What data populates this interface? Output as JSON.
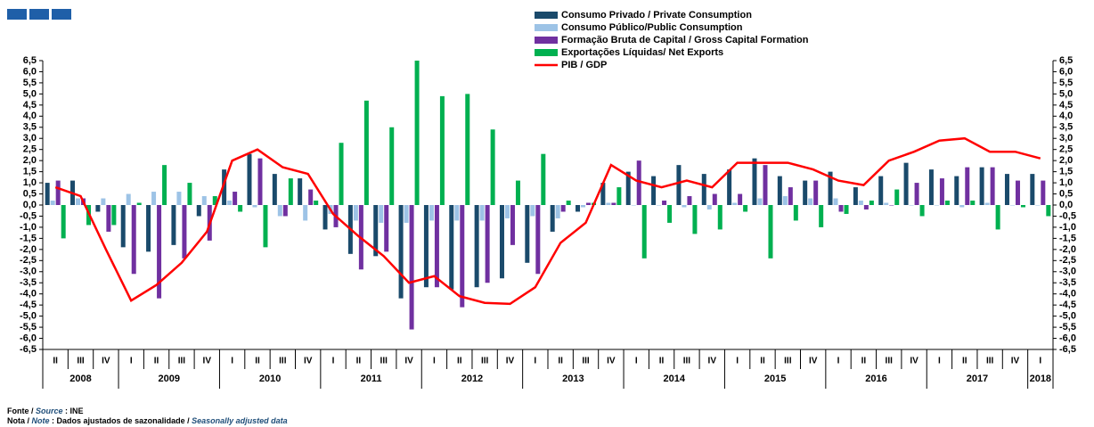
{
  "chart_data": {
    "type": "bar",
    "categories": [
      "II",
      "III",
      "IV",
      "I",
      "II",
      "III",
      "IV",
      "I",
      "II",
      "III",
      "IV",
      "I",
      "II",
      "III",
      "IV",
      "I",
      "II",
      "III",
      "IV",
      "I",
      "II",
      "III",
      "IV",
      "I",
      "II",
      "III",
      "IV",
      "I",
      "II",
      "III",
      "IV",
      "I",
      "II",
      "III",
      "IV",
      "I",
      "II",
      "III",
      "IV",
      "I"
    ],
    "years": [
      "2008",
      "2009",
      "2010",
      "2011",
      "2012",
      "2013",
      "2014",
      "2015",
      "2016",
      "2017",
      "2018"
    ],
    "series": [
      {
        "name": "Consumo Privado / Private Consumption",
        "color": "#1a4a6b",
        "type": "bar",
        "values": [
          1.0,
          1.1,
          -0.3,
          -1.9,
          -2.1,
          -1.8,
          -0.5,
          1.6,
          2.3,
          1.4,
          1.2,
          -1.1,
          -2.2,
          -2.3,
          -4.2,
          -3.7,
          -3.8,
          -3.7,
          -3.3,
          -2.6,
          -1.2,
          -0.3,
          1.0,
          1.5,
          1.3,
          1.8,
          1.4,
          1.6,
          2.1,
          1.3,
          1.1,
          1.5,
          0.8,
          1.3,
          1.9,
          1.6,
          1.3,
          1.7,
          1.4,
          1.4
        ]
      },
      {
        "name": "Consumo Público/Public Consumption",
        "color": "#9dc3e6",
        "type": "bar",
        "values": [
          0.2,
          0.3,
          0.3,
          0.5,
          0.6,
          0.6,
          0.4,
          0.2,
          -0.1,
          -0.5,
          -0.7,
          -0.4,
          -0.7,
          -0.8,
          -0.8,
          -0.7,
          -0.7,
          -0.7,
          -0.6,
          -0.5,
          -0.6,
          -0.1,
          0.1,
          0.0,
          0.0,
          -0.1,
          -0.2,
          0.1,
          0.3,
          0.4,
          0.3,
          0.3,
          0.2,
          0.1,
          0.0,
          0.0,
          -0.1,
          0.1,
          0.0,
          0.0
        ]
      },
      {
        "name": "Formação Bruta de Capital / Gross Capital Formation",
        "color": "#7030a0",
        "type": "bar",
        "values": [
          1.1,
          0.3,
          -1.2,
          -3.1,
          -4.2,
          -2.4,
          -1.6,
          0.6,
          2.1,
          -0.5,
          0.7,
          -1.0,
          -2.9,
          -2.1,
          -5.6,
          -3.7,
          -4.6,
          -3.5,
          -1.8,
          -3.1,
          -0.3,
          0.1,
          0.1,
          2.0,
          0.2,
          0.4,
          0.5,
          0.5,
          1.8,
          0.8,
          1.1,
          -0.3,
          -0.2,
          0.0,
          1.0,
          1.2,
          1.7,
          1.7,
          1.1,
          1.1
        ]
      },
      {
        "name": "Exportações Líquidas/ Net Exports",
        "color": "#00b050",
        "type": "bar",
        "values": [
          -1.5,
          -0.9,
          -0.9,
          0.1,
          1.8,
          1.0,
          0.4,
          -0.3,
          -1.9,
          1.2,
          0.2,
          2.8,
          4.7,
          3.5,
          6.5,
          4.9,
          5.0,
          3.4,
          1.1,
          2.3,
          0.2,
          0.1,
          0.8,
          -2.4,
          -0.8,
          -1.3,
          -1.1,
          -0.3,
          -2.4,
          -0.7,
          -1.0,
          -0.4,
          0.2,
          0.7,
          -0.5,
          0.2,
          0.2,
          -1.1,
          -0.1,
          -0.5
        ]
      },
      {
        "name": "PIB / GDP",
        "color": "#ff0000",
        "type": "line",
        "values": [
          0.8,
          0.4,
          -2.0,
          -4.3,
          -3.6,
          -2.6,
          -1.2,
          2.0,
          2.5,
          1.7,
          1.4,
          -0.4,
          -1.4,
          -2.3,
          -3.5,
          -3.2,
          -4.1,
          -4.4,
          -4.45,
          -3.7,
          -1.7,
          -0.8,
          1.8,
          1.1,
          0.8,
          1.1,
          0.8,
          1.9,
          1.9,
          1.9,
          1.6,
          1.1,
          0.9,
          2.0,
          2.4,
          2.9,
          3.0,
          2.4,
          2.4,
          2.1
        ]
      }
    ],
    "ylim": [
      -6.5,
      6.5
    ],
    "yticks": [
      {
        "value": 6.5,
        "label": "6,5"
      },
      {
        "value": 6,
        "label": "6,0"
      },
      {
        "value": 5.5,
        "label": "5,5"
      },
      {
        "value": 5,
        "label": "5,0"
      },
      {
        "value": 4.5,
        "label": "4,5"
      },
      {
        "value": 4,
        "label": "4,0"
      },
      {
        "value": 3.5,
        "label": "3,5"
      },
      {
        "value": 3,
        "label": "3,0"
      },
      {
        "value": 2.5,
        "label": "2,5"
      },
      {
        "value": 2,
        "label": "2,0"
      },
      {
        "value": 1.5,
        "label": "1,5"
      },
      {
        "value": 1,
        "label": "1,0"
      },
      {
        "value": 0.5,
        "label": "0,5"
      },
      {
        "value": 0,
        "label": "0,0"
      },
      {
        "value": -0.5,
        "label": "-0,5"
      },
      {
        "value": -1,
        "label": "-1,0"
      },
      {
        "value": -1.5,
        "label": "-1,5"
      },
      {
        "value": -2,
        "label": "-2,0"
      },
      {
        "value": -2.5,
        "label": "-2,5"
      },
      {
        "value": -3,
        "label": "-3,0"
      },
      {
        "value": -3.5,
        "label": "-3,5"
      },
      {
        "value": -4,
        "label": "-4,0"
      },
      {
        "value": -4.5,
        "label": "-4,5"
      },
      {
        "value": -5,
        "label": "-5,0"
      },
      {
        "value": -5.5,
        "label": "-5,5"
      },
      {
        "value": -6,
        "label": "-6,0"
      },
      {
        "value": -6.5,
        "label": "-6,5"
      }
    ],
    "grid": false,
    "notes": {
      "source_pt": "Fonte /",
      "source_en": "Source",
      "source_text": ": INE",
      "note_pt": "Nota /",
      "note_en": "Note",
      "note_text": ": Dados ajustados de sazonalidade /",
      "note_text_en": "Seasonally adjusted data"
    }
  }
}
